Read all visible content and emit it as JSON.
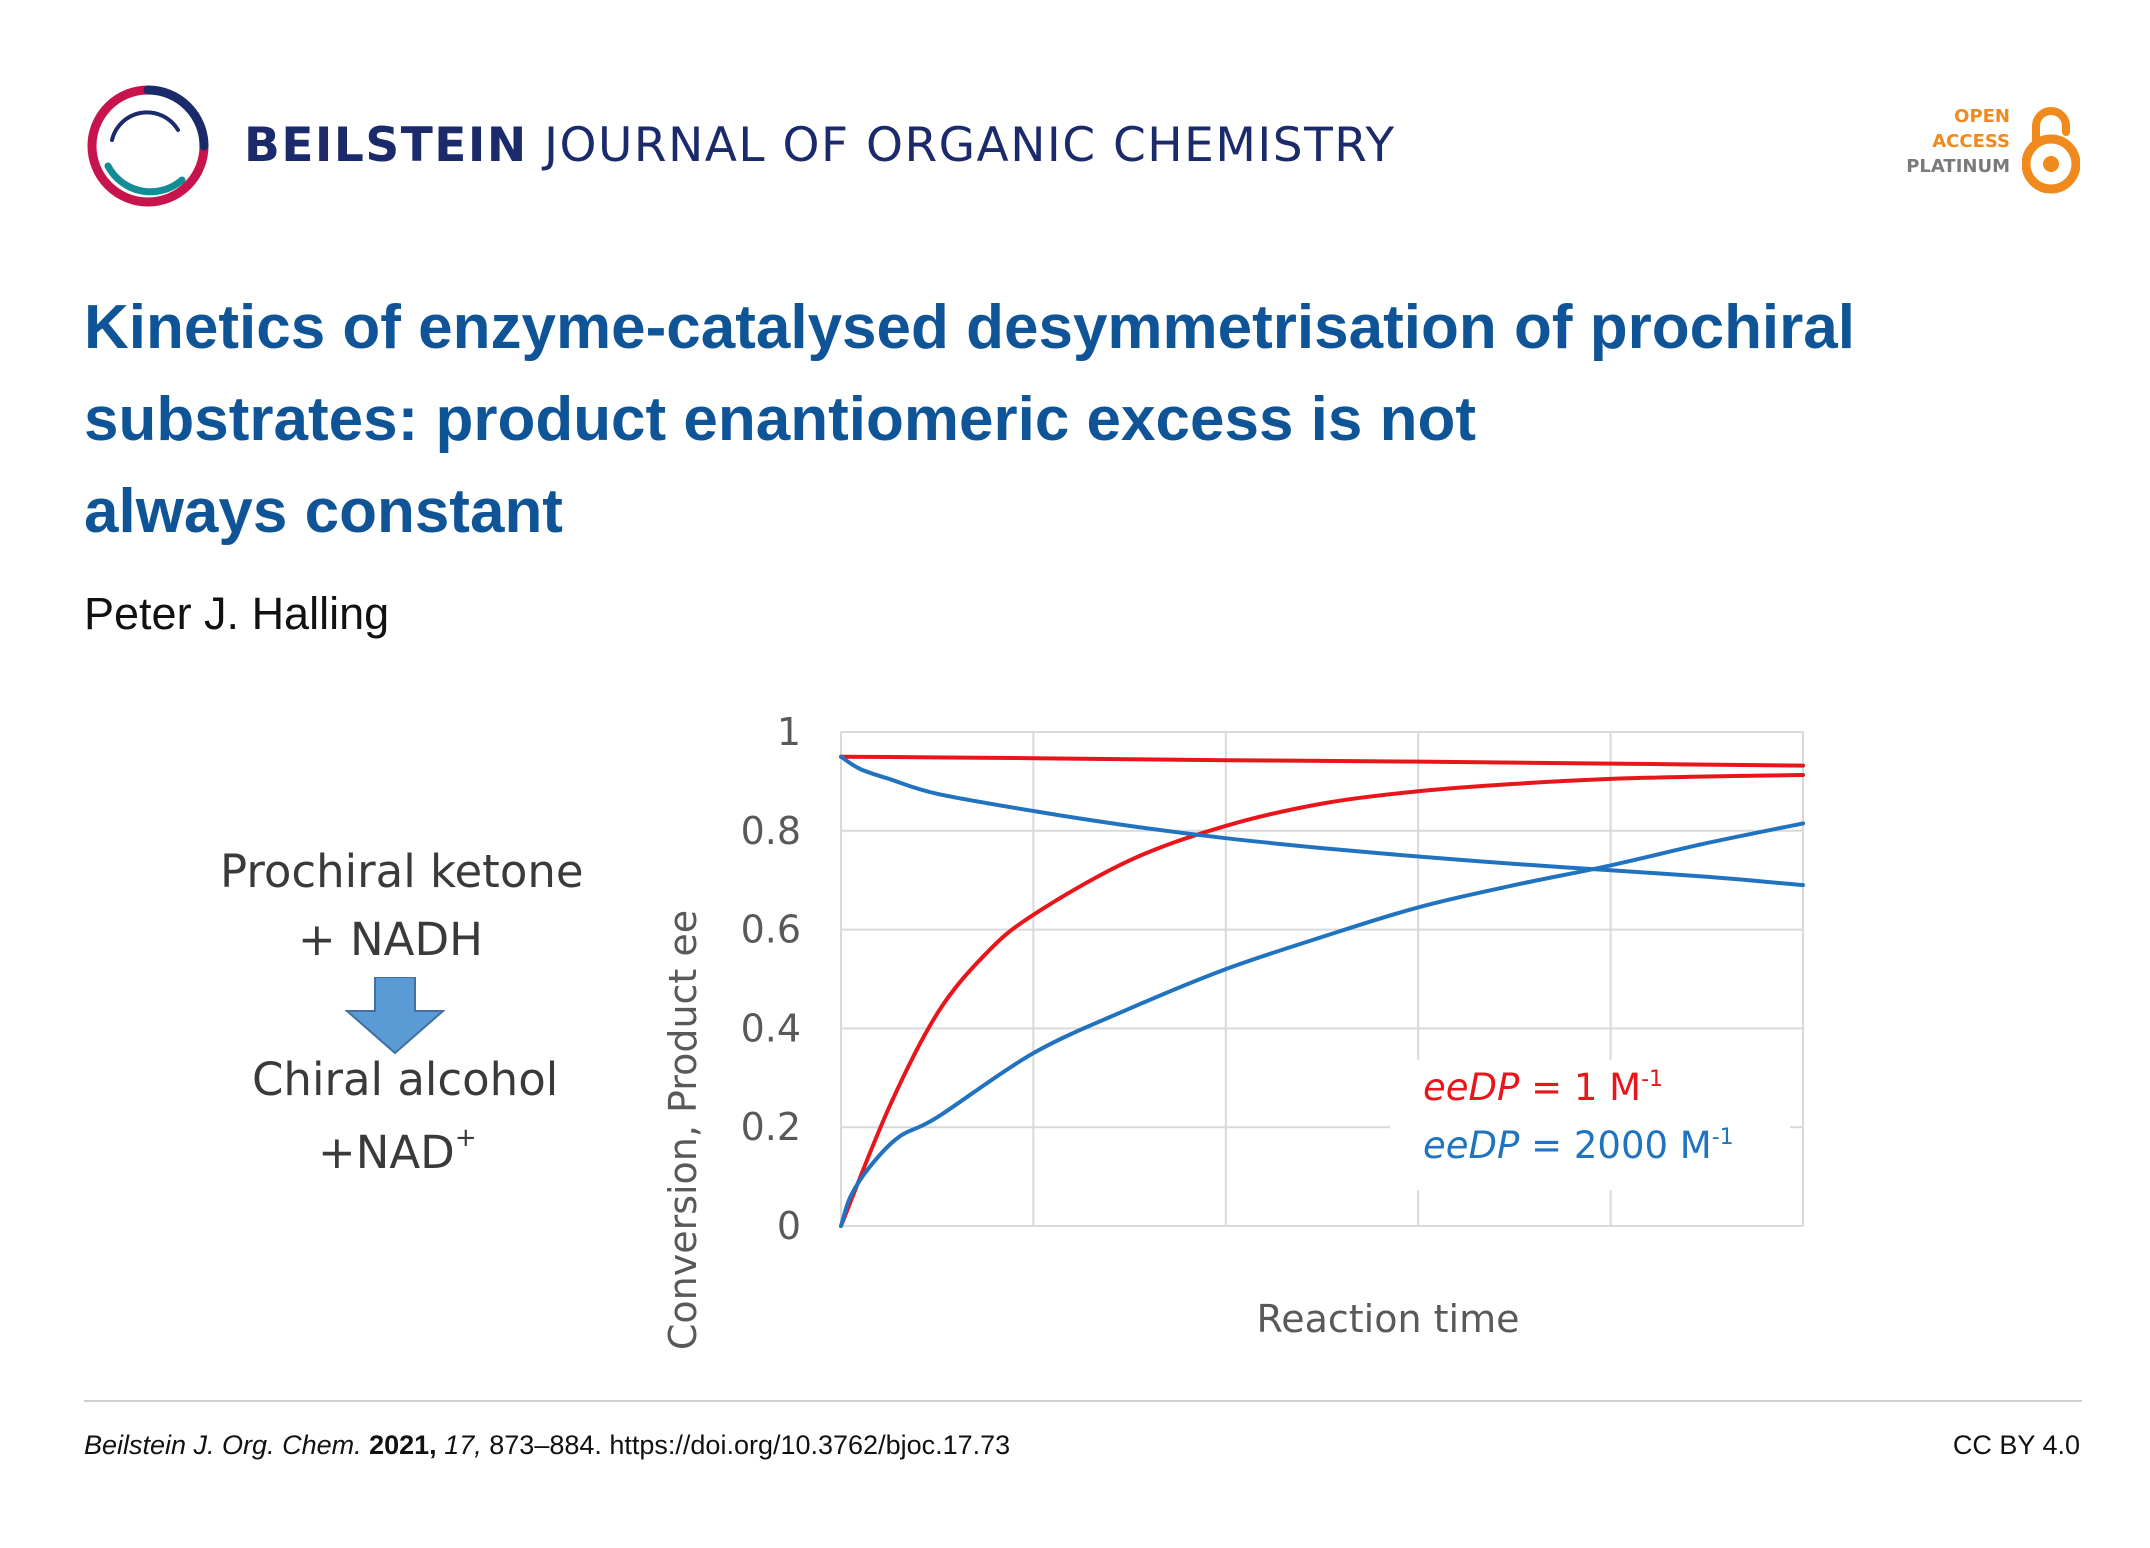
{
  "header": {
    "journal_bold": "BEILSTEIN",
    "journal_rest": " JOURNAL OF ORGANIC CHEMISTRY",
    "oa_line1": "OPEN",
    "oa_line2": "ACCESS",
    "oa_line3": "PLATINUM",
    "logo_icon": "beilstein-ring-logo",
    "oa_icon": "open-access-lock-icon"
  },
  "article": {
    "title_line1": "Kinetics of enzyme-catalysed desymmetrisation of prochiral",
    "title_line2": "substrates: product enantiomeric excess is not",
    "title_line3": "always constant",
    "author": "Peter J. Halling"
  },
  "scheme": {
    "line1": "Prochiral ketone",
    "line2": "+ NADH",
    "line3": "Chiral alcohol",
    "line4_base": "+NAD",
    "line4_sup": "+"
  },
  "chart_data": {
    "type": "line",
    "title": "",
    "xlabel": "Reaction time",
    "ylabel": "Conversion, Product ee",
    "ylim": [
      0,
      1
    ],
    "xlim": [
      0,
      5
    ],
    "yticks": [
      "0",
      "0.2",
      "0.4",
      "0.6",
      "0.8",
      "1"
    ],
    "grid": true,
    "legend_position": "bottom-right",
    "legend": [
      {
        "italic": "eeDP",
        "rest": " = 1 M",
        "sup": "-1",
        "color": "#e8151b"
      },
      {
        "italic": "eeDP",
        "rest": " = 2000 M",
        "sup": "-1",
        "color": "#2173c0"
      }
    ],
    "series": [
      {
        "group": "eeDP = 1 M-1",
        "kind": "ee",
        "color": "#e8151b",
        "x": [
          0,
          1,
          2,
          3,
          4,
          5
        ],
        "values": [
          0.95,
          0.947,
          0.943,
          0.94,
          0.936,
          0.932
        ]
      },
      {
        "group": "eeDP = 1 M-1",
        "kind": "conversion",
        "color": "#e8151b",
        "x": [
          0,
          0.25,
          0.5,
          0.75,
          1,
          1.5,
          2,
          2.5,
          3,
          3.5,
          4,
          4.5,
          5
        ],
        "values": [
          0,
          0.24,
          0.43,
          0.55,
          0.63,
          0.74,
          0.81,
          0.855,
          0.88,
          0.895,
          0.905,
          0.91,
          0.913
        ]
      },
      {
        "group": "eeDP = 2000 M-1",
        "kind": "ee",
        "color": "#2173c0",
        "x": [
          0,
          0.1,
          0.25,
          0.5,
          1,
          1.5,
          2,
          2.5,
          3,
          3.5,
          4,
          4.5,
          5
        ],
        "values": [
          0.95,
          0.925,
          0.905,
          0.875,
          0.84,
          0.81,
          0.785,
          0.765,
          0.748,
          0.733,
          0.72,
          0.707,
          0.69
        ]
      },
      {
        "group": "eeDP = 2000 M-1",
        "kind": "conversion",
        "color": "#2173c0",
        "x": [
          0,
          0.05,
          0.15,
          0.3,
          0.5,
          1,
          1.5,
          2,
          2.5,
          3,
          3.5,
          4,
          4.5,
          5
        ],
        "values": [
          0,
          0.06,
          0.12,
          0.18,
          0.22,
          0.35,
          0.44,
          0.52,
          0.585,
          0.645,
          0.69,
          0.73,
          0.775,
          0.815
        ]
      }
    ]
  },
  "footer": {
    "journal_abbrev": "Beilstein J. Org. Chem.",
    "year": "2021,",
    "volume": "17,",
    "pages_doi": "873–884. https://doi.org/10.3762/bjoc.17.73",
    "license": "CC BY 4.0"
  }
}
